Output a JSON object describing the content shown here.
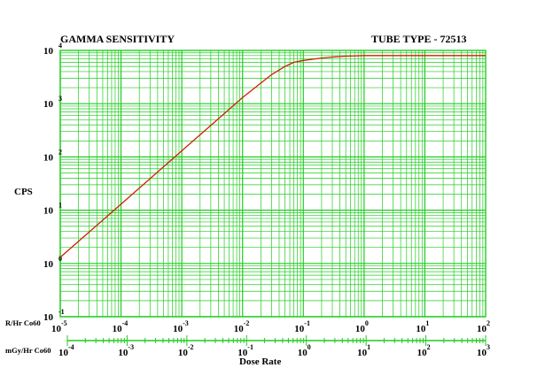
{
  "chart_data": {
    "type": "line",
    "title_left": "GAMMA SENSITIVITY",
    "title_right": "TUBE TYPE - 72513",
    "ylabel": "CPS",
    "xlabel": "Dose Rate",
    "y_scale": "log",
    "ylim": [
      0.1,
      10000
    ],
    "y_ticks": [
      {
        "base": "10",
        "exp": "-1"
      },
      {
        "base": "10",
        "exp": "0"
      },
      {
        "base": "10",
        "exp": "1"
      },
      {
        "base": "10",
        "exp": "2"
      },
      {
        "base": "10",
        "exp": "3"
      },
      {
        "base": "10",
        "exp": "4"
      }
    ],
    "x_scale": "log",
    "xlim": [
      1e-05,
      100
    ],
    "x_axis_primary": {
      "label": "R/Hr Co60",
      "ticks": [
        {
          "base": "10",
          "exp": "-5"
        },
        {
          "base": "10",
          "exp": "-4"
        },
        {
          "base": "10",
          "exp": "-3"
        },
        {
          "base": "10",
          "exp": "-2"
        },
        {
          "base": "10",
          "exp": "-1"
        },
        {
          "base": "10",
          "exp": "0"
        },
        {
          "base": "10",
          "exp": "1"
        },
        {
          "base": "10",
          "exp": "2"
        }
      ]
    },
    "x_axis_secondary": {
      "label": "mGy/Hr Co60",
      "range": [
        0.0001,
        1000
      ],
      "ticks": [
        {
          "base": "10",
          "exp": "-4"
        },
        {
          "base": "10",
          "exp": "-3"
        },
        {
          "base": "10",
          "exp": "-2"
        },
        {
          "base": "10",
          "exp": "-1"
        },
        {
          "base": "10",
          "exp": "0"
        },
        {
          "base": "10",
          "exp": "1"
        },
        {
          "base": "10",
          "exp": "2"
        },
        {
          "base": "10",
          "exp": "3"
        }
      ]
    },
    "grid": true,
    "series": [
      {
        "x": [
          1e-05,
          0.0001,
          0.001,
          0.01,
          0.03,
          0.05,
          0.07,
          0.1,
          0.2,
          0.3,
          0.5,
          1,
          3,
          10,
          100
        ],
        "y": [
          1.3,
          13,
          130,
          1300,
          3500,
          5000,
          6000,
          6500,
          7200,
          7500,
          7800,
          8000,
          8000,
          8000,
          8000
        ]
      }
    ],
    "colors": {
      "grid": "#22cc22",
      "curve": "#cc2200",
      "axis": "#22cc22"
    }
  }
}
